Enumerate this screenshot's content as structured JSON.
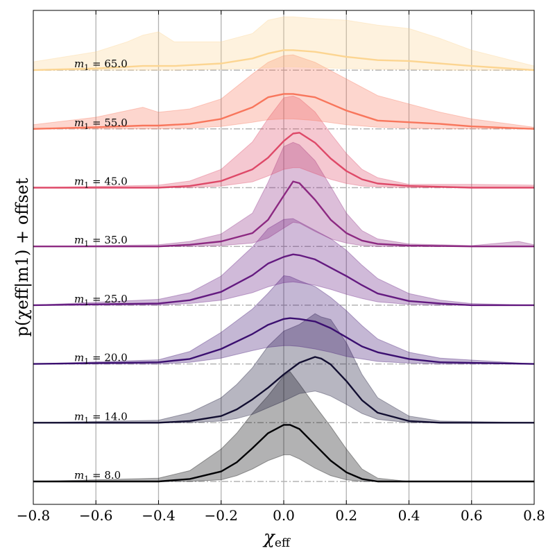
{
  "chart_data": {
    "type": "area",
    "title": "",
    "xlabel_main": "χ",
    "xlabel_sub": "eff",
    "ylabel_text": "p(χeff|m1) + offset",
    "xlim": [
      -0.8,
      0.8
    ],
    "x_ticks": [
      -0.8,
      -0.6,
      -0.4,
      -0.2,
      0.0,
      0.2,
      0.4,
      0.6,
      0.8
    ],
    "x_tick_labels": [
      "−0.8",
      "−0.6",
      "−0.4",
      "−0.2",
      "0.0",
      "0.2",
      "0.4",
      "0.6",
      "0.8"
    ],
    "grid": "vertical lines at x ticks",
    "y_ticks_shown": false,
    "series": [
      {
        "label": "m1 = 8.0",
        "m1": "8.0",
        "color": "#000004",
        "x": [
          -0.8,
          -0.4,
          -0.3,
          -0.2,
          -0.15,
          -0.1,
          -0.05,
          0.0,
          0.02,
          0.05,
          0.1,
          0.15,
          0.2,
          0.25,
          0.3,
          0.4,
          0.8
        ],
        "median": [
          0.0,
          0.0,
          0.03,
          0.12,
          0.23,
          0.4,
          0.58,
          0.68,
          0.68,
          0.63,
          0.44,
          0.25,
          0.11,
          0.03,
          0.0,
          0.0,
          0.0
        ],
        "upper": [
          0.0,
          0.04,
          0.13,
          0.39,
          0.58,
          0.82,
          1.03,
          1.27,
          1.32,
          1.17,
          0.91,
          0.66,
          0.39,
          0.15,
          0.04,
          0.0,
          0.0
        ],
        "lower": [
          0.0,
          0.0,
          0.0,
          0.02,
          0.07,
          0.15,
          0.25,
          0.32,
          0.32,
          0.27,
          0.16,
          0.07,
          0.02,
          0.0,
          0.0,
          0.0,
          0.0
        ]
      },
      {
        "label": "m1 = 14.0",
        "m1": "14.0",
        "color": "#120e31",
        "x": [
          -0.8,
          -0.4,
          -0.3,
          -0.2,
          -0.15,
          -0.1,
          -0.05,
          0.0,
          0.05,
          0.1,
          0.12,
          0.15,
          0.2,
          0.25,
          0.3,
          0.4,
          0.5,
          0.8
        ],
        "median": [
          0.0,
          0.0,
          0.02,
          0.08,
          0.16,
          0.28,
          0.42,
          0.58,
          0.72,
          0.79,
          0.77,
          0.7,
          0.5,
          0.27,
          0.12,
          0.02,
          0.0,
          0.0
        ],
        "upper": [
          0.0,
          0.03,
          0.12,
          0.3,
          0.46,
          0.66,
          0.92,
          1.1,
          1.18,
          1.31,
          1.27,
          1.24,
          0.96,
          0.58,
          0.3,
          0.08,
          0.02,
          0.0
        ],
        "lower": [
          0.0,
          0.0,
          0.0,
          0.02,
          0.05,
          0.1,
          0.18,
          0.26,
          0.35,
          0.38,
          0.36,
          0.32,
          0.22,
          0.11,
          0.04,
          0.0,
          0.0,
          0.0
        ]
      },
      {
        "label": "m1 = 20.0",
        "m1": "20.0",
        "color": "#3b0f70",
        "x": [
          -0.8,
          -0.4,
          -0.3,
          -0.2,
          -0.1,
          -0.05,
          0.0,
          0.02,
          0.05,
          0.1,
          0.15,
          0.2,
          0.25,
          0.3,
          0.4,
          0.5,
          0.8
        ],
        "median": [
          0.0,
          0.02,
          0.06,
          0.18,
          0.36,
          0.47,
          0.54,
          0.55,
          0.54,
          0.51,
          0.43,
          0.32,
          0.21,
          0.14,
          0.06,
          0.02,
          0.0
        ],
        "upper": [
          0.0,
          0.05,
          0.15,
          0.38,
          0.66,
          0.85,
          1.06,
          1.05,
          1.0,
          0.93,
          0.8,
          0.64,
          0.46,
          0.3,
          0.14,
          0.07,
          0.0
        ],
        "lower": [
          0.0,
          0.0,
          0.02,
          0.07,
          0.16,
          0.2,
          0.22,
          0.22,
          0.21,
          0.18,
          0.14,
          0.09,
          0.06,
          0.03,
          0.01,
          0.0,
          0.0
        ]
      },
      {
        "label": "m1 = 25.0",
        "m1": "25.0",
        "color": "#641a80",
        "x": [
          -0.8,
          -0.4,
          -0.3,
          -0.2,
          -0.1,
          -0.05,
          0.0,
          0.03,
          0.05,
          0.1,
          0.15,
          0.2,
          0.25,
          0.3,
          0.4,
          0.5,
          0.6,
          0.8
        ],
        "median": [
          0.0,
          0.02,
          0.06,
          0.16,
          0.36,
          0.5,
          0.58,
          0.61,
          0.6,
          0.55,
          0.45,
          0.35,
          0.24,
          0.14,
          0.05,
          0.02,
          0.0,
          0.0
        ],
        "upper": [
          0.0,
          0.07,
          0.15,
          0.35,
          0.7,
          0.92,
          1.03,
          1.04,
          1.0,
          0.9,
          0.8,
          0.66,
          0.48,
          0.32,
          0.14,
          0.06,
          0.02,
          0.0
        ],
        "lower": [
          0.0,
          0.0,
          0.02,
          0.06,
          0.15,
          0.22,
          0.27,
          0.28,
          0.27,
          0.24,
          0.19,
          0.13,
          0.08,
          0.04,
          0.01,
          0.0,
          0.0,
          0.0
        ]
      },
      {
        "label": "m1 = 35.0",
        "m1": "35.0",
        "color": "#8c2981",
        "x": [
          -0.8,
          -0.4,
          -0.3,
          -0.2,
          -0.1,
          -0.05,
          0.0,
          0.03,
          0.05,
          0.1,
          0.15,
          0.2,
          0.25,
          0.3,
          0.4,
          0.6,
          0.75,
          0.8
        ],
        "median": [
          0.0,
          0.0,
          0.02,
          0.06,
          0.16,
          0.32,
          0.61,
          0.78,
          0.76,
          0.56,
          0.32,
          0.16,
          0.07,
          0.03,
          0.01,
          0.0,
          0.0,
          0.0
        ],
        "upper": [
          0.0,
          0.02,
          0.06,
          0.15,
          0.4,
          0.77,
          1.2,
          1.25,
          1.22,
          1.03,
          0.72,
          0.4,
          0.19,
          0.09,
          0.03,
          0.01,
          0.06,
          0.02
        ],
        "lower": [
          0.0,
          0.0,
          0.0,
          0.01,
          0.04,
          0.1,
          0.22,
          0.29,
          0.28,
          0.18,
          0.09,
          0.04,
          0.01,
          0.0,
          0.0,
          0.0,
          0.0,
          0.0
        ]
      },
      {
        "label": "m1 = 45.0",
        "m1": "45.0",
        "color": "#de4968",
        "x": [
          -0.8,
          -0.4,
          -0.3,
          -0.2,
          -0.1,
          -0.05,
          0.0,
          0.03,
          0.05,
          0.1,
          0.15,
          0.2,
          0.25,
          0.3,
          0.4,
          0.6,
          0.8
        ],
        "median": [
          0.0,
          0.0,
          0.02,
          0.08,
          0.22,
          0.36,
          0.56,
          0.65,
          0.66,
          0.54,
          0.35,
          0.2,
          0.1,
          0.05,
          0.02,
          0.0,
          0.0
        ],
        "upper": [
          0.0,
          0.03,
          0.08,
          0.22,
          0.55,
          0.83,
          1.08,
          1.1,
          1.07,
          0.91,
          0.65,
          0.41,
          0.22,
          0.12,
          0.04,
          0.04,
          0.03
        ],
        "lower": [
          0.0,
          0.0,
          0.0,
          0.02,
          0.07,
          0.14,
          0.22,
          0.24,
          0.24,
          0.17,
          0.1,
          0.05,
          0.02,
          0.01,
          0.0,
          0.0,
          0.0
        ]
      },
      {
        "label": "m1 = 55.0",
        "m1": "55.0",
        "color": "#f8765c",
        "x": [
          -0.8,
          -0.6,
          -0.45,
          -0.4,
          -0.3,
          -0.2,
          -0.1,
          -0.05,
          0.0,
          0.03,
          0.1,
          0.2,
          0.3,
          0.4,
          0.5,
          0.6,
          0.8
        ],
        "median": [
          0.0,
          0.02,
          0.04,
          0.04,
          0.06,
          0.12,
          0.26,
          0.38,
          0.42,
          0.42,
          0.38,
          0.22,
          0.1,
          0.08,
          0.06,
          0.03,
          0.0
        ],
        "upper": [
          0.05,
          0.14,
          0.26,
          0.2,
          0.24,
          0.36,
          0.66,
          0.8,
          0.88,
          0.89,
          0.8,
          0.6,
          0.4,
          0.3,
          0.2,
          0.12,
          0.02
        ],
        "lower": [
          0.0,
          0.0,
          0.0,
          0.0,
          0.01,
          0.03,
          0.08,
          0.11,
          0.12,
          0.12,
          0.1,
          0.05,
          0.02,
          0.01,
          0.0,
          0.0,
          0.0
        ]
      },
      {
        "label": "m1 = 65.0",
        "m1": "65.0",
        "color": "#fcd591",
        "x": [
          -0.8,
          -0.6,
          -0.5,
          -0.45,
          -0.4,
          -0.35,
          -0.2,
          -0.1,
          -0.05,
          0.0,
          0.03,
          0.1,
          0.2,
          0.3,
          0.4,
          0.5,
          0.6,
          0.8
        ],
        "median": [
          0.0,
          0.02,
          0.04,
          0.05,
          0.05,
          0.05,
          0.08,
          0.14,
          0.2,
          0.24,
          0.24,
          0.22,
          0.16,
          0.12,
          0.11,
          0.08,
          0.05,
          0.0
        ],
        "upper": [
          0.1,
          0.22,
          0.34,
          0.42,
          0.46,
          0.34,
          0.34,
          0.44,
          0.6,
          0.64,
          0.64,
          0.62,
          0.6,
          0.54,
          0.5,
          0.38,
          0.24,
          0.05
        ],
        "lower": [
          0.0,
          0.0,
          0.0,
          0.0,
          0.0,
          0.0,
          0.01,
          0.02,
          0.03,
          0.04,
          0.04,
          0.03,
          0.02,
          0.01,
          0.01,
          0.0,
          0.0,
          0.0
        ]
      }
    ]
  }
}
